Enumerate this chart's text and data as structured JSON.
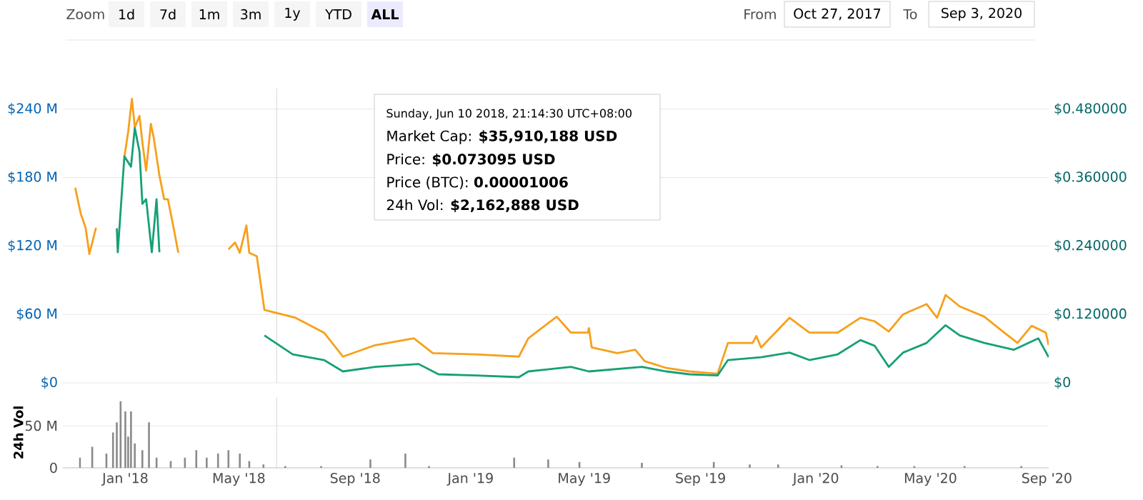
{
  "chart_data": [
    {
      "type": "line",
      "xlim": [
        "2017-10-27",
        "2020-09-03"
      ],
      "ylim": [
        0,
        258
      ],
      "y2lim": [
        0,
        0.516
      ],
      "grid": "y",
      "tick_labels": "y",
      "yticks": [
        {
          "value": 0,
          "label": "$0"
        },
        {
          "value": 60,
          "label": "$60 M"
        },
        {
          "value": 120,
          "label": "$120 M"
        },
        {
          "value": 180,
          "label": "$180 M"
        },
        {
          "value": 240,
          "label": "$240 M"
        }
      ],
      "y2ticks": [
        {
          "value": 0,
          "label": "$0"
        },
        {
          "value": 0.12,
          "label": "$0.120000"
        },
        {
          "value": 0.24,
          "label": "$0.240000"
        },
        {
          "value": 0.36,
          "label": "$0.360000"
        },
        {
          "value": 0.48,
          "label": "$0.480000"
        }
      ],
      "series": [
        {
          "color": "#f7a01c",
          "axis": "y",
          "x": [
            "2017-11-09",
            "2017-11-15",
            "2017-11-20",
            "2017-11-24",
            "2017-12-01",
            "2017-12-10",
            "2017-12-31",
            "2018-01-04",
            "2018-01-08",
            "2018-01-11",
            "2018-01-16",
            "2018-01-19",
            "2018-01-23",
            "2018-01-28",
            "2018-01-31",
            "2018-02-06",
            "2018-02-11",
            "2018-02-15",
            "2018-02-21",
            "2018-02-26",
            "2018-03-20",
            "2018-04-20",
            "2018-04-27",
            "2018-05-02",
            "2018-05-09",
            "2018-05-12",
            "2018-05-20",
            "2018-05-28",
            "2018-06-30",
            "2018-07-30",
            "2018-08-19",
            "2018-09-22",
            "2018-11-02",
            "2018-11-22",
            "2019-01-06",
            "2019-02-21",
            "2019-03-03",
            "2019-04-02",
            "2019-04-17",
            "2019-05-05",
            "2019-05-06",
            "2019-05-09",
            "2019-06-05",
            "2019-06-24",
            "2019-07-04",
            "2019-07-27",
            "2019-08-20",
            "2019-09-19",
            "2019-09-30",
            "2019-10-26",
            "2019-10-30",
            "2019-11-04",
            "2019-12-04",
            "2019-12-25",
            "2020-01-24",
            "2020-02-17",
            "2020-03-03",
            "2020-03-18",
            "2020-04-02",
            "2020-04-27",
            "2020-05-08",
            "2020-05-17",
            "2020-06-01",
            "2020-06-27",
            "2020-07-12",
            "2020-08-01",
            "2020-08-16",
            "2020-08-31",
            "2020-09-03"
          ],
          "values": [
            171,
            148,
            136,
            113,
            136,
            null,
            198,
            220,
            249,
            224,
            234,
            211,
            186,
            227,
            215,
            182,
            161,
            161,
            136,
            114,
            null,
            117,
            123,
            114,
            138,
            114,
            111,
            64,
            57,
            44,
            23,
            33,
            39,
            26,
            25,
            23,
            39,
            58,
            44,
            44,
            48,
            31,
            26,
            29,
            19,
            13,
            10,
            8,
            35,
            35,
            41,
            31,
            57,
            44,
            44,
            57,
            54,
            45,
            60,
            69,
            57,
            77,
            67,
            58,
            48,
            35,
            50,
            44,
            33
          ]
        },
        {
          "color": "#16a078",
          "axis": "y2",
          "x": [
            "2017-12-23",
            "2017-12-24",
            "2017-12-31",
            "2018-01-07",
            "2018-01-11",
            "2018-01-16",
            "2018-01-19",
            "2018-01-23",
            "2018-01-29",
            "2018-02-03",
            "2018-02-06",
            "2018-02-20",
            "2018-05-28",
            "2018-06-27",
            "2018-07-30",
            "2018-08-19",
            "2018-09-22",
            "2018-11-07",
            "2018-11-28",
            "2019-01-06",
            "2019-02-21",
            "2019-03-03",
            "2019-04-17",
            "2019-05-06",
            "2019-07-01",
            "2019-07-27",
            "2019-08-20",
            "2019-09-19",
            "2019-09-30",
            "2019-11-04",
            "2019-12-04",
            "2019-12-25",
            "2020-01-24",
            "2020-02-17",
            "2020-03-03",
            "2020-03-18",
            "2020-04-02",
            "2020-04-27",
            "2020-05-17",
            "2020-06-01",
            "2020-06-27",
            "2020-07-28",
            "2020-08-23",
            "2020-09-03"
          ],
          "values": [
            0.271,
            0.229,
            0.397,
            0.379,
            0.447,
            0.405,
            0.314,
            0.322,
            0.229,
            0.322,
            0.229,
            null,
            0.083,
            0.05,
            0.04,
            0.02,
            0.028,
            0.033,
            0.015,
            0.013,
            0.01,
            0.02,
            0.028,
            0.02,
            0.028,
            0.02,
            0.015,
            0.013,
            0.04,
            0.045,
            0.053,
            0.04,
            0.05,
            0.075,
            0.065,
            0.028,
            0.053,
            0.07,
            0.101,
            0.083,
            0.07,
            0.058,
            0.078,
            0.045
          ]
        }
      ],
      "ref_lines": [
        {
          "axis": "x",
          "value": "2018-06-10",
          "color": "#cccccc"
        }
      ],
      "annotations": [
        "Sunday, Jun 10 2018, 21:14:30 UTC+08:00",
        "Market Cap: **$35,910,188 USD**",
        "Price: **$0.073095 USD**",
        "Price (BTC): **0.00001006**",
        "24h Vol: **$2,162,888 USD**",
        "Zoom",
        "1d",
        "7d",
        "1m",
        "3m",
        "1y",
        "YTD",
        "ALL",
        "From",
        "Oct 27, 2017",
        "To",
        "Sep 3, 2020"
      ]
    },
    {
      "type": "bar",
      "xlim": [
        "2017-10-27",
        "2020-09-03"
      ],
      "ylim": [
        0,
        84
      ],
      "grid": "y",
      "ylabel": "24h Vol",
      "color": "#8a8a8a",
      "yticks": [
        {
          "value": 0,
          "label": "0"
        },
        {
          "value": 50,
          "label": "50 M"
        }
      ],
      "xticks": [
        {
          "value": "2018-01-01",
          "label": "Jan '18"
        },
        {
          "value": "2018-05-01",
          "label": "May '18"
        },
        {
          "value": "2018-09-01",
          "label": "Sep '18"
        },
        {
          "value": "2019-01-01",
          "label": "Jan '19"
        },
        {
          "value": "2019-05-01",
          "label": "May '19"
        },
        {
          "value": "2019-09-01",
          "label": "Sep '19"
        },
        {
          "value": "2020-01-01",
          "label": "Jan '20"
        },
        {
          "value": "2020-05-01",
          "label": "May '20"
        },
        {
          "value": "2020-09-01",
          "label": "Sep '20"
        }
      ],
      "x": [
        "2017-11-14",
        "2017-11-27",
        "2017-12-12",
        "2017-12-19",
        "2017-12-23",
        "2017-12-27",
        "2018-01-01",
        "2018-01-04",
        "2018-01-07",
        "2018-01-11",
        "2018-01-19",
        "2018-01-26",
        "2018-02-03",
        "2018-02-18",
        "2018-03-05",
        "2018-03-17",
        "2018-03-28",
        "2018-04-09",
        "2018-04-20",
        "2018-05-02",
        "2018-05-12",
        "2018-05-27",
        "2018-06-19",
        "2018-07-27",
        "2018-09-17",
        "2018-10-24",
        "2018-11-18",
        "2019-02-16",
        "2019-03-24",
        "2019-04-26",
        "2019-07-01",
        "2019-09-15",
        "2019-10-23",
        "2019-11-22",
        "2020-01-28",
        "2020-03-06",
        "2020-04-14",
        "2020-06-06",
        "2020-08-05"
      ],
      "values": [
        12,
        25,
        17,
        42,
        54,
        79,
        67,
        37,
        67,
        29,
        21,
        54,
        12,
        8,
        12,
        21,
        12,
        17,
        21,
        17,
        8,
        4,
        2,
        2,
        10,
        17,
        2,
        12,
        10,
        7,
        6,
        7,
        4,
        4,
        3,
        2,
        2,
        2,
        2
      ],
      "ref_lines": [
        {
          "axis": "x",
          "value": "2018-06-10",
          "color": "#cccccc"
        }
      ]
    }
  ]
}
